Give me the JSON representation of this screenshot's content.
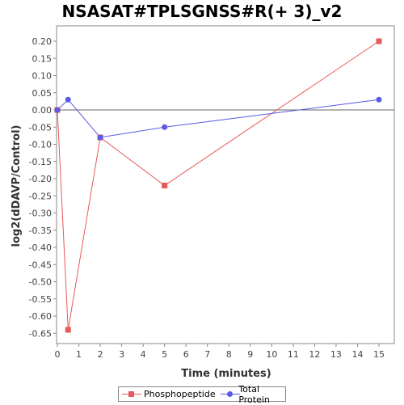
{
  "chart_data": {
    "type": "line",
    "title": "NSASAT#TPLSGNSS#R(+ 3)_v2",
    "xlabel": "Time (minutes)",
    "ylabel": "log2(dDAVP/Control)",
    "xlim": [
      0,
      16
    ],
    "ylim": [
      -0.68,
      0.24
    ],
    "x_ticks": [
      0,
      1,
      2,
      3,
      4,
      5,
      6,
      7,
      8,
      9,
      10,
      11,
      12,
      13,
      14,
      15
    ],
    "y_ticks": [
      0.2,
      0.15,
      0.1,
      0.05,
      0.0,
      -0.05,
      -0.1,
      -0.15,
      -0.2,
      -0.25,
      -0.3,
      -0.35,
      -0.4,
      -0.45,
      -0.5,
      -0.55,
      -0.6,
      -0.65
    ],
    "y_tick_labels": [
      "0.20",
      "0.15",
      "0.10",
      "0.05",
      "0.00",
      "-0.05",
      "-0.10",
      "-0.15",
      "-0.20",
      "-0.25",
      "-0.30",
      "-0.35",
      "-0.40",
      "-0.45",
      "-0.50",
      "-0.55",
      "-0.60",
      "-0.65"
    ],
    "reference_line_y": 0,
    "grid": false,
    "legend_position": "bottom",
    "series": [
      {
        "name": "Phosphopeptide",
        "color": "#e8595a",
        "marker": "square",
        "x": [
          0,
          0.5,
          2,
          5,
          15
        ],
        "y": [
          0.0,
          -0.64,
          -0.08,
          -0.22,
          0.2
        ]
      },
      {
        "name": "Total Protein",
        "color": "#5a5ae8",
        "marker": "circle",
        "x": [
          0,
          0.5,
          2,
          5,
          15
        ],
        "y": [
          0.0,
          0.03,
          -0.08,
          -0.05,
          0.03
        ]
      }
    ]
  }
}
